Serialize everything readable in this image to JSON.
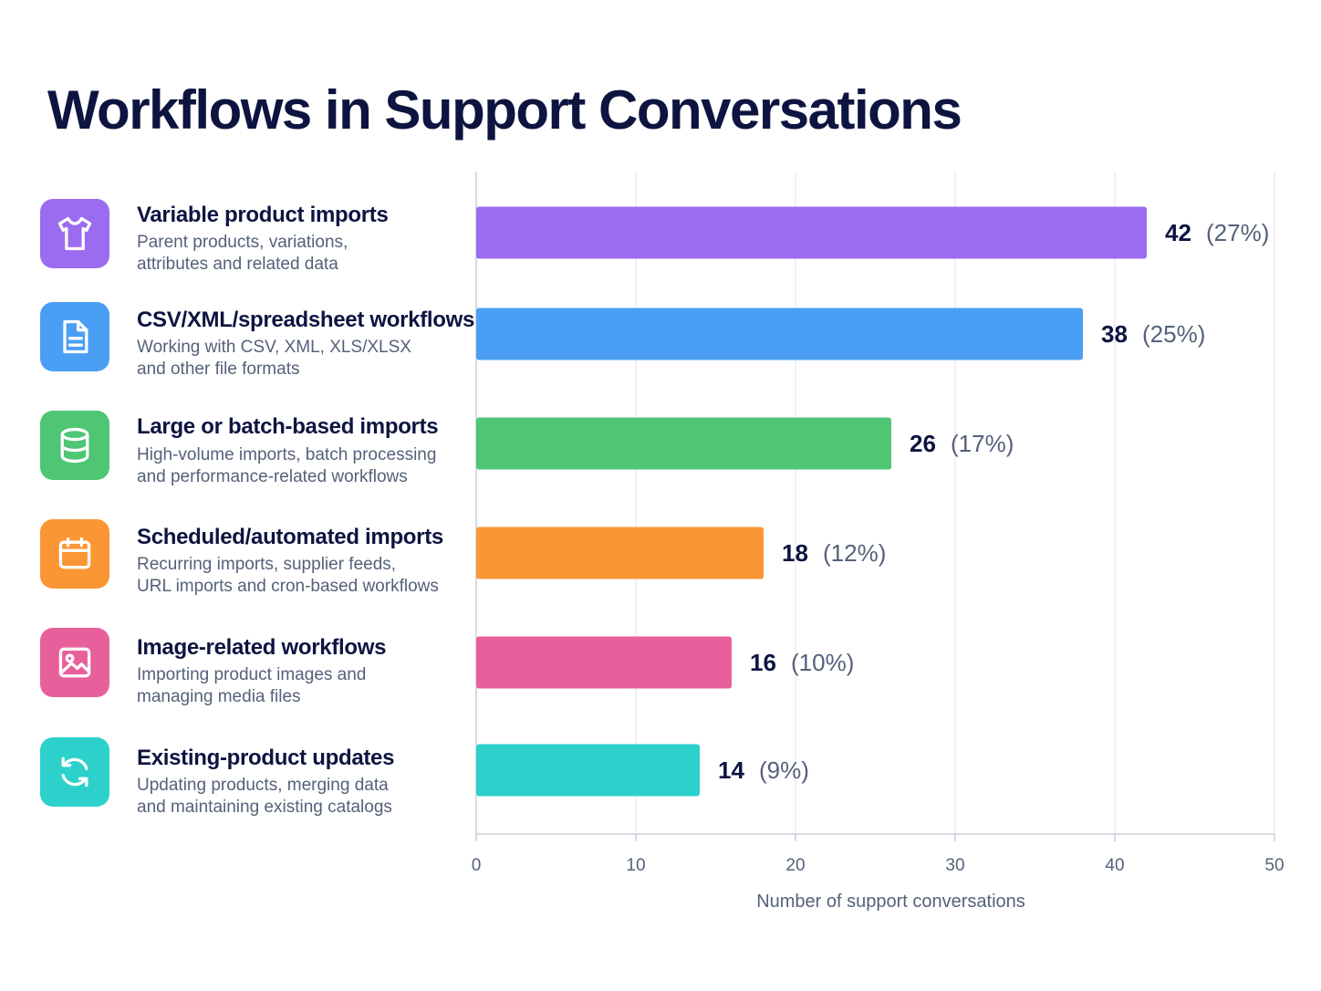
{
  "chart_data": {
    "type": "bar",
    "orientation": "horizontal",
    "title": "Workflows in Support Conversations",
    "xlabel": "Number of support conversations",
    "xlim": [
      0,
      50
    ],
    "xticks": [
      0,
      10,
      20,
      30,
      40,
      50
    ],
    "grid": true,
    "categories": [
      "Variable product imports",
      "CSV/XML/spreadsheet workflows",
      "Large or batch-based imports",
      "Scheduled/automated imports",
      "Image-related workflows",
      "Existing-product updates"
    ],
    "values": [
      42,
      38,
      26,
      18,
      16,
      14
    ],
    "percent_labels": [
      "(27%)",
      "(25%)",
      "(17%)",
      "(12%)",
      "(10%)",
      "(9%)"
    ],
    "colors": [
      "#9b6cf0",
      "#4a9ff5",
      "#4ec674",
      "#fb9634",
      "#e8609b",
      "#2dd1cc"
    ]
  },
  "rows": [
    {
      "title": "Variable product imports",
      "desc1": "Parent products, variations,",
      "desc2": "attributes and related data",
      "icon": "tshirt-icon",
      "color": "#9b6cf0"
    },
    {
      "title": "CSV/XML/spreadsheet workflows",
      "desc1": "Working with CSV, XML, XLS/XLSX",
      "desc2": "and other file formats",
      "icon": "document-icon",
      "color": "#4a9ff5"
    },
    {
      "title": "Large or batch-based imports",
      "desc1": "High-volume imports, batch processing",
      "desc2": "and performance-related workflows",
      "icon": "database-icon",
      "color": "#4ec674"
    },
    {
      "title": "Scheduled/automated imports",
      "desc1": "Recurring imports, supplier feeds,",
      "desc2": "URL imports and cron-based workflows",
      "icon": "calendar-icon",
      "color": "#fb9634"
    },
    {
      "title": "Image-related workflows",
      "desc1": "Importing product images and",
      "desc2": "managing media files",
      "icon": "image-icon",
      "color": "#e8609b"
    },
    {
      "title": "Existing-product updates",
      "desc1": "Updating products, merging data",
      "desc2": "and maintaining existing catalogs",
      "icon": "refresh-icon",
      "color": "#2dd1cc"
    }
  ]
}
